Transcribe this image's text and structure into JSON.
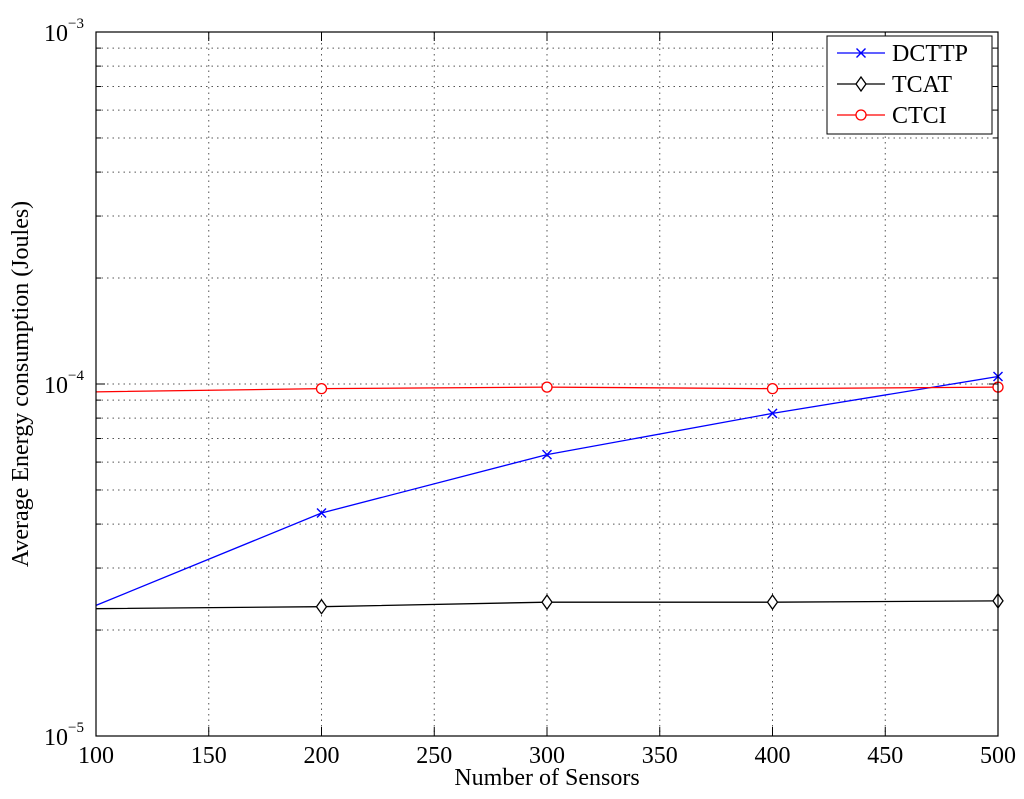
{
  "chart_data": {
    "type": "line",
    "xlabel": "Number of Sensors",
    "ylabel": "Average Energy consumption (Joules)",
    "x": [
      100,
      200,
      300,
      400,
      500
    ],
    "xlim": [
      100,
      500
    ],
    "ylim": [
      1e-05,
      0.001
    ],
    "yscale": "log",
    "xticks": [
      "100",
      "150",
      "200",
      "250",
      "300",
      "350",
      "400",
      "450",
      "500"
    ],
    "yticks": [
      {
        "base": "10",
        "exp": "−5"
      },
      {
        "base": "10",
        "exp": "−4"
      },
      {
        "base": "10",
        "exp": "−3"
      }
    ],
    "grid": true,
    "legend_position": "top-right",
    "series": [
      {
        "name": "DCTTP",
        "color": "#0000ff",
        "marker": "x",
        "values": [
          2.35e-05,
          4.3e-05,
          6.3e-05,
          8.25e-05,
          0.000105
        ]
      },
      {
        "name": "TCAT",
        "color": "#000000",
        "marker": "diamond",
        "values": [
          2.3e-05,
          2.33e-05,
          2.4e-05,
          2.4e-05,
          2.42e-05
        ]
      },
      {
        "name": "CTCI",
        "color": "#ff0000",
        "marker": "circle",
        "values": [
          9.5e-05,
          9.7e-05,
          9.8e-05,
          9.7e-05,
          9.8e-05
        ]
      }
    ]
  }
}
